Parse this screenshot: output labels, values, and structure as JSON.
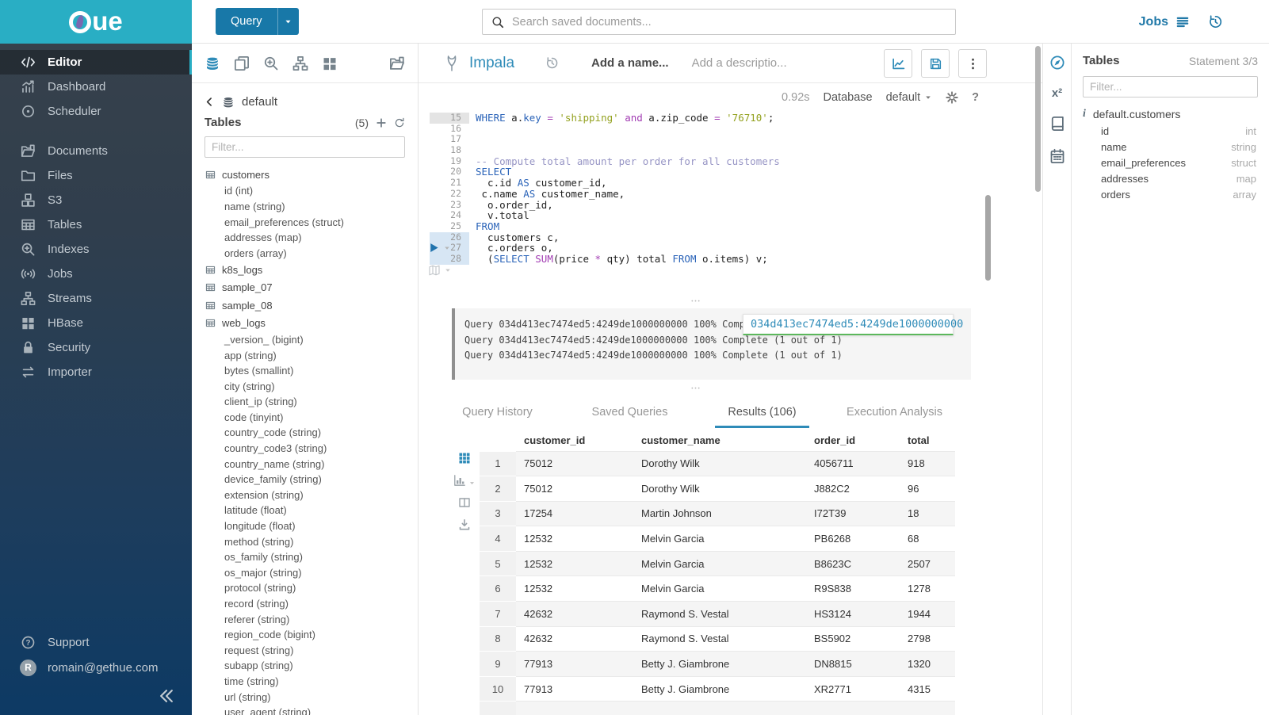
{
  "brand": {
    "name": "Hue"
  },
  "topbar": {
    "query_button": "Query",
    "search_placeholder": "Search saved documents...",
    "jobs_label": "Jobs"
  },
  "sidebar": {
    "items": [
      {
        "label": "Editor",
        "icon": "code-icon",
        "active": true
      },
      {
        "label": "Dashboard",
        "icon": "dashboard-icon"
      },
      {
        "label": "Scheduler",
        "icon": "scheduler-icon"
      },
      {
        "label": "Documents",
        "icon": "documents-icon",
        "group_start": true
      },
      {
        "label": "Files",
        "icon": "files-icon"
      },
      {
        "label": "S3",
        "icon": "s3-icon"
      },
      {
        "label": "Tables",
        "icon": "tables-icon"
      },
      {
        "label": "Indexes",
        "icon": "indexes-icon"
      },
      {
        "label": "Jobs",
        "icon": "jobs-icon"
      },
      {
        "label": "Streams",
        "icon": "streams-icon"
      },
      {
        "label": "HBase",
        "icon": "hbase-icon"
      },
      {
        "label": "Security",
        "icon": "security-icon"
      },
      {
        "label": "Importer",
        "icon": "importer-icon"
      }
    ],
    "support_label": "Support",
    "user_email": "romain@gethue.com",
    "user_initial": "R"
  },
  "left_panel": {
    "header_icons": [
      "database-icon",
      "copy-icon",
      "zoom-in-icon",
      "sitemap-icon",
      "grid-icon"
    ],
    "folder_icon": "folder-open-icon",
    "database": "default",
    "section_title": "Tables",
    "count": "(5)",
    "filter_placeholder": "Filter...",
    "tree": [
      {
        "name": "customers",
        "columns": [
          {
            "name": "id",
            "type": "int"
          },
          {
            "name": "name",
            "type": "string"
          },
          {
            "name": "email_preferences",
            "type": "struct"
          },
          {
            "name": "addresses",
            "type": "map"
          },
          {
            "name": "orders",
            "type": "array"
          }
        ]
      },
      {
        "name": "k8s_logs",
        "columns": []
      },
      {
        "name": "sample_07",
        "columns": []
      },
      {
        "name": "sample_08",
        "columns": []
      },
      {
        "name": "web_logs",
        "columns": [
          {
            "name": "_version_",
            "type": "bigint"
          },
          {
            "name": "app",
            "type": "string"
          },
          {
            "name": "bytes",
            "type": "smallint"
          },
          {
            "name": "city",
            "type": "string"
          },
          {
            "name": "client_ip",
            "type": "string"
          },
          {
            "name": "code",
            "type": "tinyint"
          },
          {
            "name": "country_code",
            "type": "string"
          },
          {
            "name": "country_code3",
            "type": "string"
          },
          {
            "name": "country_name",
            "type": "string"
          },
          {
            "name": "device_family",
            "type": "string"
          },
          {
            "name": "extension",
            "type": "string"
          },
          {
            "name": "latitude",
            "type": "float"
          },
          {
            "name": "longitude",
            "type": "float"
          },
          {
            "name": "method",
            "type": "string"
          },
          {
            "name": "os_family",
            "type": "string"
          },
          {
            "name": "os_major",
            "type": "string"
          },
          {
            "name": "protocol",
            "type": "string"
          },
          {
            "name": "record",
            "type": "string"
          },
          {
            "name": "referer",
            "type": "string"
          },
          {
            "name": "region_code",
            "type": "bigint"
          },
          {
            "name": "request",
            "type": "string"
          },
          {
            "name": "subapp",
            "type": "string"
          },
          {
            "name": "time",
            "type": "string"
          },
          {
            "name": "url",
            "type": "string"
          },
          {
            "name": "user_agent",
            "type": "string"
          }
        ]
      }
    ]
  },
  "editor": {
    "engine": "Impala",
    "name_placeholder": "Add a name...",
    "description_placeholder": "Add a descriptio...",
    "execution_time": "0.92s",
    "database_label": "Database",
    "database_value": "default",
    "code_lines": [
      {
        "n": 15,
        "state": "active",
        "tokens": [
          [
            "kw",
            "WHERE"
          ],
          [
            "t",
            " a."
          ],
          [
            "kw",
            "key"
          ],
          [
            "t",
            " "
          ],
          [
            "op",
            "="
          ],
          [
            "t",
            " "
          ],
          [
            "str",
            "'shipping'"
          ],
          [
            "t",
            " "
          ],
          [
            "op",
            "and"
          ],
          [
            "t",
            " a.zip_code "
          ],
          [
            "op",
            "="
          ],
          [
            "t",
            " "
          ],
          [
            "str",
            "'76710'"
          ],
          [
            "t",
            ";"
          ]
        ]
      },
      {
        "n": 16,
        "tokens": []
      },
      {
        "n": 17,
        "tokens": []
      },
      {
        "n": 18,
        "tokens": []
      },
      {
        "n": 19,
        "tokens": [
          [
            "com",
            "-- Compute total amount per order for all customers"
          ]
        ]
      },
      {
        "n": 20,
        "tokens": [
          [
            "kw",
            "SELECT"
          ]
        ]
      },
      {
        "n": 21,
        "tokens": [
          [
            "t",
            "  c.id "
          ],
          [
            "kw",
            "AS"
          ],
          [
            "t",
            " customer_id,"
          ]
        ]
      },
      {
        "n": 22,
        "tokens": [
          [
            "t",
            " c.name "
          ],
          [
            "kw",
            "AS"
          ],
          [
            "t",
            " customer_name,"
          ]
        ]
      },
      {
        "n": 23,
        "tokens": [
          [
            "t",
            "  o.order_id,"
          ]
        ]
      },
      {
        "n": 24,
        "tokens": [
          [
            "t",
            "  v.total"
          ]
        ]
      },
      {
        "n": 25,
        "tokens": [
          [
            "kw",
            "FROM"
          ]
        ]
      },
      {
        "n": 26,
        "state": "run",
        "tokens": [
          [
            "t",
            "  customers c,"
          ]
        ]
      },
      {
        "n": 27,
        "state": "run",
        "tokens": [
          [
            "t",
            "  c.orders o,"
          ]
        ]
      },
      {
        "n": 28,
        "state": "run",
        "tokens": [
          [
            "t",
            "  ("
          ],
          [
            "kw",
            "SELECT"
          ],
          [
            "t",
            " "
          ],
          [
            "op",
            "SUM"
          ],
          [
            "t",
            "(price "
          ],
          [
            "op",
            "*"
          ],
          [
            "t",
            " qty) total "
          ],
          [
            "kw",
            "FROM"
          ],
          [
            "t",
            " o.items) v;"
          ]
        ]
      }
    ]
  },
  "logs": {
    "lines": [
      "Query 034d413ec7474ed5:4249de1000000000 100% Complete (1 out of 1)",
      "Query 034d413ec7474ed5:4249de1000000000 100% Complete (1 out of 1)",
      "Query 034d413ec7474ed5:4249de1000000000 100% Complete (1 out of 1)"
    ],
    "tooltip_value": "034d413ec7474ed5:4249de1000000000"
  },
  "result_tabs": [
    {
      "label": "Query History"
    },
    {
      "label": "Saved Queries"
    },
    {
      "label": "Results (106)",
      "active": true
    },
    {
      "label": "Execution Analysis"
    }
  ],
  "results": {
    "columns": [
      "customer_id",
      "customer_name",
      "order_id",
      "total"
    ],
    "rows": [
      [
        "1",
        "75012",
        "Dorothy Wilk",
        "4056711",
        "918"
      ],
      [
        "2",
        "75012",
        "Dorothy Wilk",
        "J882C2",
        "96"
      ],
      [
        "3",
        "17254",
        "Martin Johnson",
        "I72T39",
        "18"
      ],
      [
        "4",
        "12532",
        "Melvin Garcia",
        "PB6268",
        "68"
      ],
      [
        "5",
        "12532",
        "Melvin Garcia",
        "B8623C",
        "2507"
      ],
      [
        "6",
        "12532",
        "Melvin Garcia",
        "R9S838",
        "1278"
      ],
      [
        "7",
        "42632",
        "Raymond S. Vestal",
        "HS3124",
        "1944"
      ],
      [
        "8",
        "42632",
        "Raymond S. Vestal",
        "BS5902",
        "2798"
      ],
      [
        "9",
        "77913",
        "Betty J. Giambrone",
        "DN8815",
        "1320"
      ],
      [
        "10",
        "77913",
        "Betty J. Giambrone",
        "XR2771",
        "4315"
      ]
    ]
  },
  "right_panel": {
    "strip_icons": [
      "compass-icon",
      "functions-icon",
      "book-icon",
      "calendar-icon"
    ],
    "title": "Tables",
    "statement": "Statement 3/3",
    "filter_placeholder": "Filter...",
    "table_name": "default.customers",
    "columns": [
      {
        "name": "id",
        "type": "int"
      },
      {
        "name": "name",
        "type": "string"
      },
      {
        "name": "email_preferences",
        "type": "struct"
      },
      {
        "name": "addresses",
        "type": "map"
      },
      {
        "name": "orders",
        "type": "array"
      }
    ]
  },
  "colors": {
    "brand_teal": "#29aec4",
    "accent_blue": "#2e8bb8",
    "button_blue": "#1878a8",
    "tooltip_green": "#5cb85c"
  }
}
